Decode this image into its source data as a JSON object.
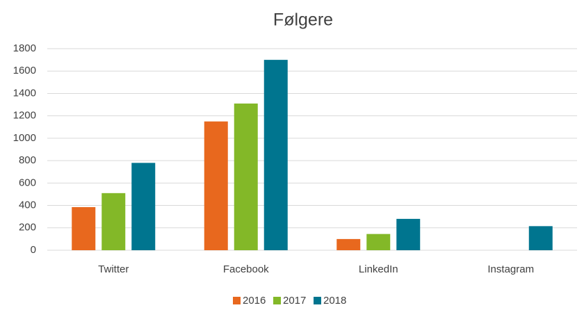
{
  "chart_data": {
    "type": "bar",
    "title": "Følgere",
    "categories": [
      "Twitter",
      "Facebook",
      "LinkedIn",
      "Instagram"
    ],
    "series": [
      {
        "name": "2016",
        "color": "#e8681e",
        "values": [
          385,
          1150,
          100,
          null
        ]
      },
      {
        "name": "2017",
        "color": "#83b828",
        "values": [
          510,
          1310,
          145,
          null
        ]
      },
      {
        "name": "2018",
        "color": "#00758f",
        "values": [
          780,
          1700,
          280,
          215
        ]
      }
    ],
    "ylim": [
      0,
      1800
    ],
    "yticks": [
      0,
      200,
      400,
      600,
      800,
      1000,
      1200,
      1400,
      1600,
      1800
    ],
    "grid": true,
    "legend": "bottom"
  }
}
